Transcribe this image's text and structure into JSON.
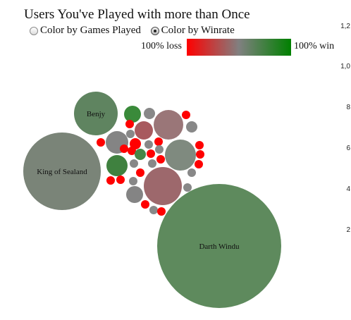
{
  "title": "Users You've Played with more than Once",
  "controls": {
    "options": [
      {
        "label": "Color by Games Played",
        "selected": false
      },
      {
        "label": "Color by Winrate",
        "selected": true
      }
    ]
  },
  "legend": {
    "left_label": "100% loss",
    "right_label": "100% win",
    "colors": {
      "loss": "#ff0000",
      "neutral": "#808080",
      "win": "#008000"
    }
  },
  "side_axis": {
    "tick_labels": [
      "1,2",
      "1,0",
      "8",
      "6",
      "4",
      "2"
    ]
  },
  "chart_data": {
    "type": "bubble",
    "title": "Users You've Played with more than Once",
    "color_by": "winrate",
    "color_scale": {
      "min_label": "100% loss",
      "max_label": "100% win",
      "colors": [
        "#ff0000",
        "#808080",
        "#008000"
      ]
    },
    "labeled_bubbles": [
      {
        "name": "Darth Windu",
        "winrate": 0.78,
        "color": "#5e8a5d"
      },
      {
        "name": "King of Sealand",
        "winrate": 0.55,
        "color": "#7a8478"
      },
      {
        "name": "Benjy",
        "winrate": 0.7,
        "color": "#5f8460"
      }
    ],
    "unlabeled_bubbles": [
      {
        "color": "#3a8a3a",
        "winrate": 0.9
      },
      {
        "color": "#a85a5e",
        "winrate": 0.25
      },
      {
        "color": "#9a7678",
        "winrate": 0.35
      },
      {
        "color": "#9d686c",
        "winrate": 0.3
      },
      {
        "color": "#7f8a7f",
        "winrate": 0.55
      },
      {
        "color": "#848484",
        "winrate": 0.5
      },
      {
        "color": "#3f813f",
        "winrate": 0.9
      },
      {
        "color": "#478747",
        "winrate": 0.85
      },
      {
        "color": "#888888",
        "winrate": 0.5
      },
      {
        "color": "#ff0000",
        "winrate": 0.0
      }
    ]
  }
}
